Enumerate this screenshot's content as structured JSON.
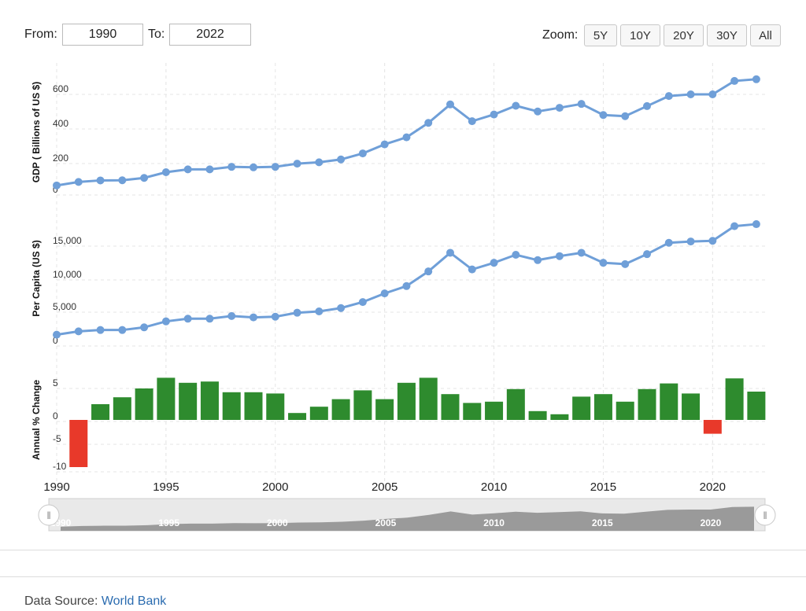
{
  "controls": {
    "from_label": "From:",
    "from_value": "1990",
    "to_label": "To:",
    "to_value": "2022",
    "zoom_label": "Zoom:",
    "zoom_buttons": [
      "5Y",
      "10Y",
      "20Y",
      "30Y",
      "All"
    ]
  },
  "footer": {
    "source_label": "Data Source:",
    "source_link": "World Bank"
  },
  "chart_data": [
    {
      "type": "line",
      "ylabel": "GDP ( Billions of US $)",
      "yticks": [
        "0",
        "200",
        "400",
        "600"
      ],
      "ylim": [
        0,
        750
      ],
      "color": "#6f9fd8",
      "grid": true,
      "x": [
        1990,
        1991,
        1992,
        1993,
        1994,
        1995,
        1996,
        1997,
        1998,
        1999,
        2000,
        2001,
        2002,
        2003,
        2004,
        2005,
        2006,
        2007,
        2008,
        2009,
        2010,
        2011,
        2012,
        2013,
        2014,
        2015,
        2016,
        2017,
        2018,
        2019,
        2020,
        2021,
        2022
      ],
      "values": [
        57,
        78,
        87,
        88,
        102,
        136,
        153,
        153,
        168,
        165,
        168,
        187,
        195,
        212,
        248,
        302,
        344,
        430,
        540,
        440,
        480,
        532,
        498,
        520,
        543,
        477,
        470,
        530,
        590,
        600,
        600,
        680,
        690
      ]
    },
    {
      "type": "line",
      "ylabel": "Per Capita (US $)",
      "yticks": [
        "0",
        "5,000",
        "10,000",
        "15,000"
      ],
      "ylim": [
        0,
        19000
      ],
      "color": "#6f9fd8",
      "grid": true,
      "x": [
        1990,
        1991,
        1992,
        1993,
        1994,
        1995,
        1996,
        1997,
        1998,
        1999,
        2000,
        2001,
        2002,
        2003,
        2004,
        2005,
        2006,
        2007,
        2008,
        2009,
        2010,
        2011,
        2012,
        2013,
        2014,
        2015,
        2016,
        2017,
        2018,
        2019,
        2020,
        2021,
        2022
      ],
      "values": [
        1700,
        2200,
        2400,
        2400,
        2800,
        3700,
        4100,
        4100,
        4500,
        4300,
        4400,
        5000,
        5200,
        5700,
        6600,
        7900,
        9000,
        11200,
        14000,
        11500,
        12500,
        13700,
        12900,
        13500,
        14000,
        12500,
        12300,
        13800,
        15500,
        15700,
        15800,
        18000,
        18300
      ]
    },
    {
      "type": "bar",
      "ylabel": "Annual % Change",
      "yticks": [
        "-10",
        "-5",
        "0",
        "5"
      ],
      "ylim": [
        -10,
        10
      ],
      "positive_color": "#2e8b2e",
      "negative_color": "#e8392a",
      "grid": true,
      "x": [
        1991,
        1992,
        1993,
        1994,
        1995,
        1996,
        1997,
        1998,
        1999,
        2000,
        2001,
        2002,
        2003,
        2004,
        2005,
        2006,
        2007,
        2008,
        2009,
        2010,
        2011,
        2012,
        2013,
        2014,
        2015,
        2016,
        2017,
        2018,
        2019,
        2020,
        2021,
        2022
      ],
      "values": [
        -7.5,
        2.5,
        3.6,
        5.0,
        6.7,
        5.9,
        6.1,
        4.4,
        4.4,
        4.2,
        1.1,
        2.1,
        3.3,
        4.7,
        3.3,
        5.9,
        6.7,
        4.1,
        2.7,
        2.9,
        4.9,
        1.4,
        0.9,
        3.7,
        4.1,
        2.9,
        4.9,
        5.8,
        4.2,
        -2.2,
        6.6,
        4.5
      ]
    }
  ],
  "x_axis": {
    "ticks": [
      "1990",
      "1995",
      "2000",
      "2005",
      "2010",
      "2015",
      "2020"
    ],
    "xlim": [
      1990,
      2022.4
    ]
  },
  "navigator": {
    "ticks": [
      "1990",
      "1995",
      "2000",
      "2005",
      "2010",
      "2015",
      "2020"
    ],
    "handle_glyph": "ǁ"
  }
}
